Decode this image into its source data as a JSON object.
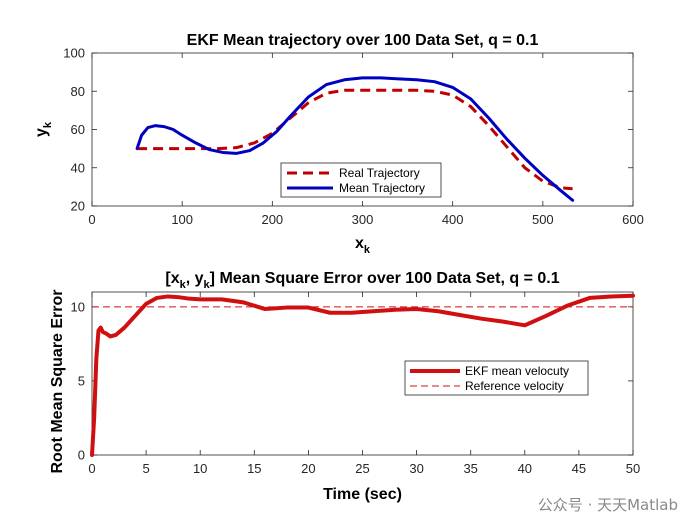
{
  "chart_data": [
    {
      "type": "line",
      "title_main": "EKF Mean trajectory over 100 Data Set, q = 0.1",
      "xlabel_base": "x",
      "xlabel_sub": "k",
      "ylabel_base": "y",
      "ylabel_sub": "k",
      "xlim": [
        0,
        600
      ],
      "ylim": [
        20,
        100
      ],
      "xticks": [
        0,
        100,
        200,
        300,
        400,
        500,
        600
      ],
      "yticks": [
        20,
        40,
        60,
        80,
        100
      ],
      "legend_position": "lower-center",
      "series": [
        {
          "name": "Real Trajectory",
          "color": "#c00000",
          "style": "dashed",
          "x": [
            50,
            80,
            110,
            140,
            160,
            180,
            200,
            220,
            240,
            260,
            280,
            300,
            320,
            340,
            360,
            380,
            400,
            420,
            440,
            460,
            480,
            500,
            520,
            533
          ],
          "y": [
            50,
            50,
            50,
            50,
            50.5,
            53,
            58,
            66,
            74,
            79,
            80.5,
            80.5,
            80.5,
            80.5,
            80.5,
            80,
            78,
            72,
            62,
            51,
            40,
            33,
            29.5,
            29
          ]
        },
        {
          "name": "Mean Trajectory",
          "color": "#0000c0",
          "style": "solid",
          "x": [
            50,
            55,
            62,
            70,
            80,
            90,
            100,
            115,
            130,
            145,
            160,
            175,
            190,
            205,
            220,
            240,
            260,
            280,
            300,
            320,
            340,
            360,
            380,
            400,
            420,
            440,
            460,
            480,
            500,
            520,
            533
          ],
          "y": [
            50,
            57,
            61,
            62,
            61.5,
            60,
            57,
            53,
            49.5,
            48,
            47.5,
            49,
            53,
            59,
            67,
            77,
            83.5,
            86,
            87,
            87,
            86.5,
            86,
            85,
            82,
            76,
            66,
            55,
            45,
            36,
            28,
            23
          ]
        }
      ]
    },
    {
      "type": "line",
      "title_part1": "[x",
      "title_sub1": "k",
      "title_part2": ", y",
      "title_sub2": "k",
      "title_part3": "] Mean Square Error over 100 Data Set, q = 0.1",
      "xlabel": "Time (sec)",
      "ylabel": "Root Mean Square Error",
      "xlim": [
        0,
        50
      ],
      "ylim": [
        0,
        11
      ],
      "xticks": [
        0,
        5,
        10,
        15,
        20,
        25,
        30,
        35,
        40,
        45,
        50
      ],
      "yticks": [
        0,
        5,
        10
      ],
      "legend_position": "right",
      "series": [
        {
          "name": "EKF mean velocuty",
          "color": "#d01010",
          "style": "solid",
          "x": [
            0,
            0.2,
            0.4,
            0.6,
            0.8,
            1.0,
            1.3,
            1.7,
            2.2,
            3,
            4,
            5,
            6,
            7,
            8,
            9,
            10,
            12,
            14,
            16,
            18,
            20,
            22,
            24,
            26,
            28,
            30,
            32,
            34,
            36,
            38,
            40,
            42,
            44,
            46,
            48,
            50
          ],
          "y": [
            0,
            2.5,
            6.5,
            8.4,
            8.6,
            8.3,
            8.2,
            8.0,
            8.1,
            8.6,
            9.4,
            10.2,
            10.6,
            10.7,
            10.65,
            10.55,
            10.5,
            10.5,
            10.3,
            9.85,
            9.95,
            9.95,
            9.6,
            9.6,
            9.7,
            9.8,
            9.85,
            9.7,
            9.45,
            9.2,
            9.0,
            8.75,
            9.4,
            10.1,
            10.6,
            10.7,
            10.75
          ]
        },
        {
          "name": "Reference velocity",
          "color": "#d01010",
          "style": "dashed",
          "x": [
            0,
            50
          ],
          "y": [
            10,
            10
          ]
        }
      ]
    }
  ],
  "watermark": "公众号 · 天天Matlab"
}
